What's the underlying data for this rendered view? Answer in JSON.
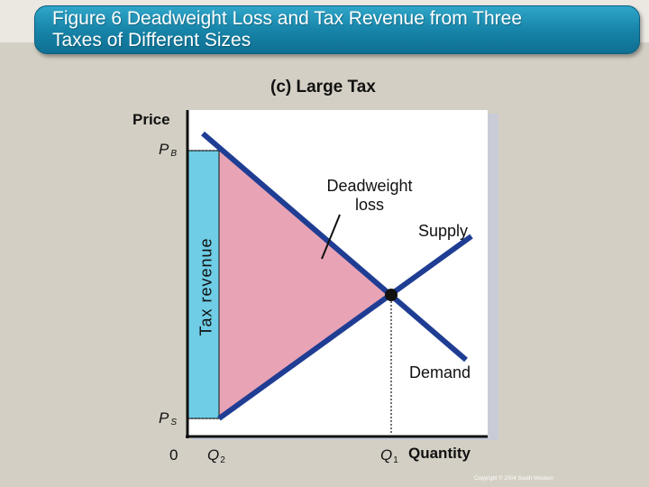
{
  "header": {
    "title_line1": "Figure 6 Deadweight Loss and Tax Revenue from Three",
    "title_line2": "Taxes of Different Sizes"
  },
  "panel": {
    "title": "(c) Large Tax"
  },
  "axes": {
    "y_title": "Price",
    "x_title": "Quantity",
    "origin": "0",
    "pb_main": "P",
    "pb_sub": "B",
    "ps_main": "P",
    "ps_sub": "S",
    "q2_main": "Q",
    "q2_sub": "2",
    "q1_main": "Q",
    "q1_sub": "1"
  },
  "labels": {
    "deadweight_line1": "Deadweight",
    "deadweight_line2": "loss",
    "supply": "Supply",
    "demand": "Demand",
    "tax_revenue": "Tax revenue"
  },
  "footer": {
    "copyright": "Copyright © 2004 South-Western"
  },
  "colors": {
    "curve": "#1f3d93",
    "deadweight_fill": "#e8a3b5",
    "tax_revenue_fill": "#6fcde6",
    "title_bar": "#1785a9"
  }
}
